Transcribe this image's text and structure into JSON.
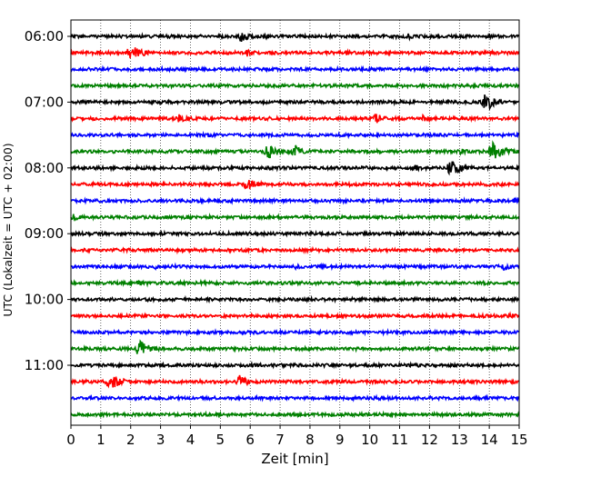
{
  "chart_data": {
    "type": "line",
    "title": "",
    "xlabel": "Zeit  [min]",
    "ylabel": "UTC (Lokalzeit = UTC + 02:00)",
    "xlim": [
      0,
      15
    ],
    "xticks": [
      "0",
      "1",
      "2",
      "3",
      "4",
      "5",
      "6",
      "7",
      "8",
      "9",
      "10",
      "11",
      "12",
      "13",
      "14",
      "15"
    ],
    "grid": "vertical dotted lines at each minute",
    "ytick_labels": [
      {
        "label": "06:00",
        "row": 0
      },
      {
        "label": "07:00",
        "row": 4
      },
      {
        "label": "08:00",
        "row": 8
      },
      {
        "label": "09:00",
        "row": 12
      },
      {
        "label": "10:00",
        "row": 16
      },
      {
        "label": "11:00",
        "row": 20
      }
    ],
    "row_colors": [
      "#000000",
      "#ff0000",
      "#0000ff",
      "#008000"
    ],
    "series": [
      {
        "start": "06:00",
        "color": "#000000",
        "events": [
          {
            "t": 5.7,
            "amp": 6
          },
          {
            "t": 6.5,
            "amp": 2
          },
          {
            "t": 11.3,
            "amp": 2
          }
        ]
      },
      {
        "start": "06:15",
        "color": "#ff0000",
        "events": [
          {
            "t": 2.0,
            "amp": 9
          },
          {
            "t": 5.9,
            "amp": 3
          },
          {
            "t": 9.2,
            "amp": 2
          }
        ]
      },
      {
        "start": "06:30",
        "color": "#0000ff",
        "events": []
      },
      {
        "start": "06:45",
        "color": "#008000",
        "events": []
      },
      {
        "start": "07:00",
        "color": "#000000",
        "events": [
          {
            "t": 13.9,
            "amp": 9
          }
        ]
      },
      {
        "start": "07:15",
        "color": "#ff0000",
        "events": [
          {
            "t": 3.6,
            "amp": 5
          },
          {
            "t": 10.2,
            "amp": 5
          },
          {
            "t": 11.8,
            "amp": 3
          }
        ]
      },
      {
        "start": "07:30",
        "color": "#0000ff",
        "events": [
          {
            "t": 4.6,
            "amp": 2
          }
        ]
      },
      {
        "start": "07:45",
        "color": "#008000",
        "events": [
          {
            "t": 6.6,
            "amp": 8
          },
          {
            "t": 7.5,
            "amp": 6
          },
          {
            "t": 14.1,
            "amp": 10
          },
          {
            "t": 13.0,
            "amp": 3
          }
        ]
      },
      {
        "start": "08:00",
        "color": "#000000",
        "events": [
          {
            "t": 12.7,
            "amp": 9
          },
          {
            "t": 11.5,
            "amp": 3
          }
        ]
      },
      {
        "start": "08:15",
        "color": "#ff0000",
        "events": [
          {
            "t": 5.9,
            "amp": 6
          }
        ]
      },
      {
        "start": "08:30",
        "color": "#0000ff",
        "events": [
          {
            "t": 14.9,
            "amp": 4
          }
        ]
      },
      {
        "start": "08:45",
        "color": "#008000",
        "events": [
          {
            "t": 0.1,
            "amp": 4
          }
        ]
      },
      {
        "start": "09:00",
        "color": "#000000",
        "events": []
      },
      {
        "start": "09:15",
        "color": "#ff0000",
        "events": []
      },
      {
        "start": "09:30",
        "color": "#0000ff",
        "events": [
          {
            "t": 2.8,
            "amp": 2
          },
          {
            "t": 7.5,
            "amp": 2
          },
          {
            "t": 14.5,
            "amp": 3
          }
        ]
      },
      {
        "start": "09:45",
        "color": "#008000",
        "events": [
          {
            "t": 2.3,
            "amp": 3
          }
        ]
      },
      {
        "start": "10:00",
        "color": "#000000",
        "events": []
      },
      {
        "start": "10:15",
        "color": "#ff0000",
        "events": [
          {
            "t": 14.7,
            "amp": 2
          }
        ]
      },
      {
        "start": "10:30",
        "color": "#0000ff",
        "events": []
      },
      {
        "start": "10:45",
        "color": "#008000",
        "events": [
          {
            "t": 2.3,
            "amp": 9
          }
        ]
      },
      {
        "start": "11:00",
        "color": "#000000",
        "events": []
      },
      {
        "start": "11:15",
        "color": "#ff0000",
        "events": [
          {
            "t": 1.3,
            "amp": 9
          },
          {
            "t": 5.6,
            "amp": 7
          }
        ]
      },
      {
        "start": "11:30",
        "color": "#0000ff",
        "events": []
      },
      {
        "start": "11:45",
        "color": "#008000",
        "events": []
      }
    ]
  }
}
